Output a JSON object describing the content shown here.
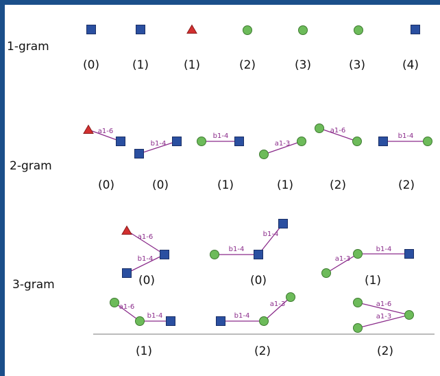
{
  "colors": {
    "frame": "#1b4f8a",
    "hexnac_square": "#2a4fa0",
    "hexose_circle": "#6dbb5a",
    "fucose_triangle": "#d23030",
    "linkage_line": "#8a2b8a",
    "divider": "#bbbbbb"
  },
  "icons": {
    "square": "blue-square-icon",
    "circle": "green-circle-icon",
    "triangle": "red-triangle-icon"
  },
  "rows": [
    {
      "label": "1-gram",
      "glycans": [
        {
          "count": "(0)",
          "nodes": [
            "square"
          ],
          "links": []
        },
        {
          "count": "(1)",
          "nodes": [
            "square"
          ],
          "links": []
        },
        {
          "count": "(1)",
          "nodes": [
            "triangle"
          ],
          "links": []
        },
        {
          "count": "(2)",
          "nodes": [
            "circle"
          ],
          "links": []
        },
        {
          "count": "(3)",
          "nodes": [
            "circle"
          ],
          "links": []
        },
        {
          "count": "(3)",
          "nodes": [
            "circle"
          ],
          "links": []
        },
        {
          "count": "(4)",
          "nodes": [
            "square"
          ],
          "links": []
        }
      ]
    },
    {
      "label": "2-gram",
      "glycans": [
        {
          "count": "(0)",
          "nodes": [
            "triangle",
            "square"
          ],
          "links": [
            "a1-6"
          ]
        },
        {
          "count": "(0)",
          "nodes": [
            "square",
            "square"
          ],
          "links": [
            "b1-4"
          ]
        },
        {
          "count": "(1)",
          "nodes": [
            "circle",
            "square"
          ],
          "links": [
            "b1-4"
          ]
        },
        {
          "count": "(1)",
          "nodes": [
            "circle",
            "circle"
          ],
          "links": [
            "a1-3"
          ]
        },
        {
          "count": "(2)",
          "nodes": [
            "circle",
            "circle"
          ],
          "links": [
            "a1-6"
          ]
        },
        {
          "count": "(2)",
          "nodes": [
            "square",
            "circle"
          ],
          "links": [
            "b1-4"
          ]
        }
      ]
    },
    {
      "label": "3-gram",
      "glycans": [
        {
          "count": "(0)",
          "nodes": [
            "triangle",
            "square",
            "square"
          ],
          "links": [
            "a1-6",
            "b1-4"
          ]
        },
        {
          "count": "(0)",
          "nodes": [
            "circle",
            "square",
            "square"
          ],
          "links": [
            "b1-4",
            "b1-4"
          ]
        },
        {
          "count": "(1)",
          "nodes": [
            "circle",
            "circle",
            "square"
          ],
          "links": [
            "a1-3",
            "b1-4"
          ]
        },
        {
          "count": "(1)",
          "nodes": [
            "circle",
            "circle",
            "square"
          ],
          "links": [
            "a1-6",
            "b1-4"
          ]
        },
        {
          "count": "(2)",
          "nodes": [
            "square",
            "circle",
            "circle"
          ],
          "links": [
            "b1-4",
            "a1-3"
          ]
        },
        {
          "count": "(2)",
          "nodes": [
            "circle",
            "circle",
            "circle"
          ],
          "links": [
            "a1-6",
            "a1-3"
          ]
        }
      ]
    }
  ]
}
